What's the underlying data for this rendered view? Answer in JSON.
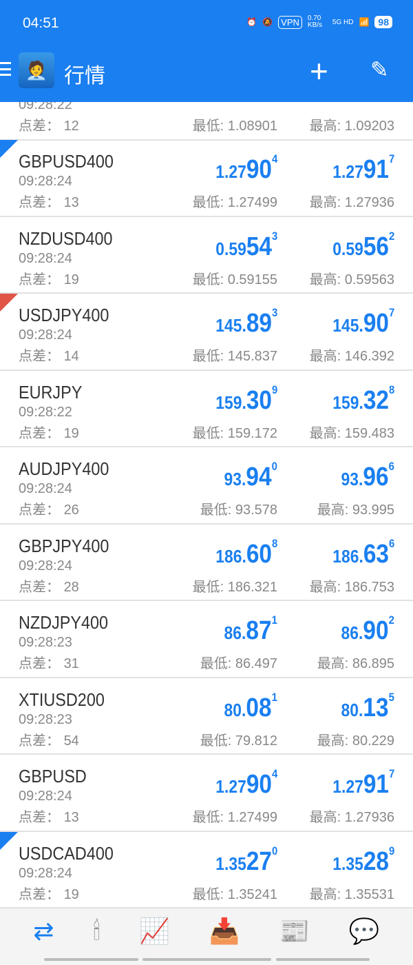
{
  "status": {
    "time": "04:51",
    "vpn": "VPN",
    "speed": "0.70 KB/s",
    "network": "5G HD",
    "battery": "98"
  },
  "appbar": {
    "title": "行情",
    "add_icon": "plus-icon",
    "edit_icon": "pencil-icon"
  },
  "labels": {
    "spread": "点差：",
    "low": "最低:",
    "high": "最高:"
  },
  "partial_row": {
    "time": "09:28:22",
    "spread": "12",
    "low": "1.08901",
    "high": "1.09203"
  },
  "quotes": [
    {
      "symbol": "GBPUSD400",
      "time": "09:28:24",
      "spread": "13",
      "bid": [
        "1.27",
        "90",
        "4"
      ],
      "ask": [
        "1.27",
        "91",
        "7"
      ],
      "low": "1.27499",
      "high": "1.27936",
      "marker": "blue"
    },
    {
      "symbol": "NZDUSD400",
      "time": "09:28:24",
      "spread": "19",
      "bid": [
        "0.59",
        "54",
        "3"
      ],
      "ask": [
        "0.59",
        "56",
        "2"
      ],
      "low": "0.59155",
      "high": "0.59563",
      "marker": ""
    },
    {
      "symbol": "USDJPY400",
      "time": "09:28:24",
      "spread": "14",
      "bid": [
        "145.",
        "89",
        "3"
      ],
      "ask": [
        "145.",
        "90",
        "7"
      ],
      "low": "145.837",
      "high": "146.392",
      "marker": "red"
    },
    {
      "symbol": "EURJPY",
      "time": "09:28:22",
      "spread": "19",
      "bid": [
        "159.",
        "30",
        "9"
      ],
      "ask": [
        "159.",
        "32",
        "8"
      ],
      "low": "159.172",
      "high": "159.483",
      "marker": ""
    },
    {
      "symbol": "AUDJPY400",
      "time": "09:28:24",
      "spread": "26",
      "bid": [
        "93.",
        "94",
        "0"
      ],
      "ask": [
        "93.",
        "96",
        "6"
      ],
      "low": "93.578",
      "high": "93.995",
      "marker": ""
    },
    {
      "symbol": "GBPJPY400",
      "time": "09:28:24",
      "spread": "28",
      "bid": [
        "186.",
        "60",
        "8"
      ],
      "ask": [
        "186.",
        "63",
        "6"
      ],
      "low": "186.321",
      "high": "186.753",
      "marker": ""
    },
    {
      "symbol": "NZDJPY400",
      "time": "09:28:23",
      "spread": "31",
      "bid": [
        "86.",
        "87",
        "1"
      ],
      "ask": [
        "86.",
        "90",
        "2"
      ],
      "low": "86.497",
      "high": "86.895",
      "marker": ""
    },
    {
      "symbol": "XTIUSD200",
      "time": "09:28:23",
      "spread": "54",
      "bid": [
        "80.",
        "08",
        "1"
      ],
      "ask": [
        "80.",
        "13",
        "5"
      ],
      "low": "79.812",
      "high": "80.229",
      "marker": ""
    },
    {
      "symbol": "GBPUSD",
      "time": "09:28:24",
      "spread": "13",
      "bid": [
        "1.27",
        "90",
        "4"
      ],
      "ask": [
        "1.27",
        "91",
        "7"
      ],
      "low": "1.27499",
      "high": "1.27936",
      "marker": ""
    },
    {
      "symbol": "USDCAD400",
      "time": "09:28:24",
      "spread": "19",
      "bid": [
        "1.35",
        "27",
        "0"
      ],
      "ask": [
        "1.35",
        "28",
        "9"
      ],
      "low": "1.35241",
      "high": "1.35531",
      "marker": "blue"
    }
  ],
  "nav": [
    {
      "icon": "quotes-icon",
      "active": true
    },
    {
      "icon": "chart-icon"
    },
    {
      "icon": "trade-icon"
    },
    {
      "icon": "history-icon"
    },
    {
      "icon": "news-icon"
    },
    {
      "icon": "messages-icon"
    }
  ],
  "colors": {
    "accent": "#1a7ff0",
    "sell_marker": "#e05545"
  }
}
